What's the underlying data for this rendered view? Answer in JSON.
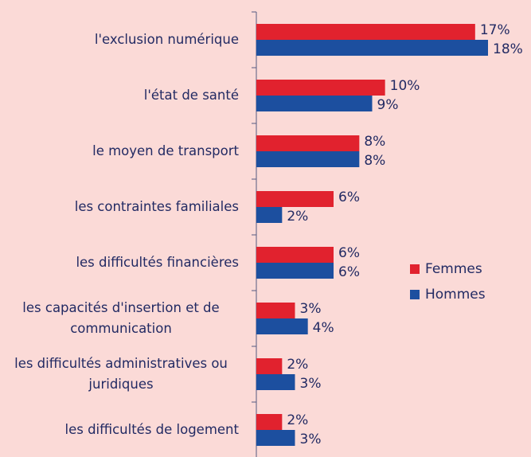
{
  "chart_data": {
    "type": "bar",
    "orientation": "horizontal",
    "categories": [
      "l'exclusion numérique",
      "l'état de santé",
      "le moyen de transport",
      "les contraintes familiales",
      "les difficultés financières",
      "les capacités d'insertion et de communication",
      "les difficultés administratives ou juridiques",
      "les difficultés de logement"
    ],
    "series": [
      {
        "name": "Femmes",
        "color": "#e1222e",
        "values": [
          17,
          10,
          8,
          6,
          6,
          3,
          2,
          2
        ],
        "value_labels": [
          "17%",
          "10%",
          "8%",
          "6%",
          "6%",
          "3%",
          "2%",
          "2%"
        ]
      },
      {
        "name": "Hommes",
        "color": "#1c4f9f",
        "values": [
          18,
          9,
          8,
          2,
          6,
          4,
          3,
          3
        ],
        "value_labels": [
          "18%",
          "9%",
          "8%",
          "2%",
          "6%",
          "4%",
          "3%",
          "3%"
        ]
      }
    ],
    "legend": "right"
  }
}
